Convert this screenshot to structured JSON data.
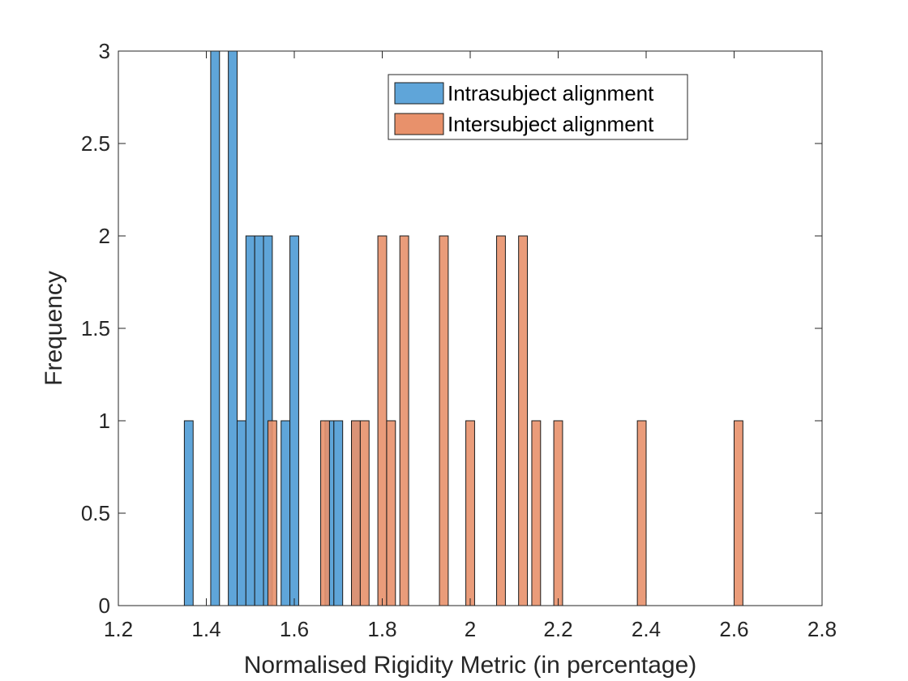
{
  "chart_data": {
    "type": "histogram",
    "xlabel": "Normalised Rigidity Metric (in percentage)",
    "ylabel": "Frequency",
    "xlim": [
      1.2,
      2.8
    ],
    "ylim": [
      0,
      3
    ],
    "xticks": [
      "1.2",
      "1.4",
      "1.6",
      "1.8",
      "2",
      "2.2",
      "2.4",
      "2.6",
      "2.8"
    ],
    "yticks": [
      "0",
      "0.5",
      "1",
      "1.5",
      "2",
      "2.5",
      "3"
    ],
    "bin_width": 0.02,
    "legend": {
      "position": "top-center"
    },
    "series": [
      {
        "name": "Intrasubject alignment",
        "color": "#5fa5d9",
        "edge": "#1a1a1a",
        "bins": [
          {
            "start": 1.35,
            "count": 1
          },
          {
            "start": 1.41,
            "count": 3
          },
          {
            "start": 1.45,
            "count": 3
          },
          {
            "start": 1.47,
            "count": 1
          },
          {
            "start": 1.49,
            "count": 2
          },
          {
            "start": 1.51,
            "count": 2
          },
          {
            "start": 1.53,
            "count": 2
          },
          {
            "start": 1.57,
            "count": 1
          },
          {
            "start": 1.59,
            "count": 2
          },
          {
            "start": 1.67,
            "count": 1
          },
          {
            "start": 1.69,
            "count": 1
          },
          {
            "start": 1.73,
            "count": 1
          }
        ]
      },
      {
        "name": "Intersubject alignment",
        "color": "#e8916b",
        "edge": "#1a1a1a",
        "bins": [
          {
            "start": 1.54,
            "count": 1
          },
          {
            "start": 1.66,
            "count": 1
          },
          {
            "start": 1.73,
            "count": 1
          },
          {
            "start": 1.75,
            "count": 1
          },
          {
            "start": 1.79,
            "count": 2
          },
          {
            "start": 1.81,
            "count": 1
          },
          {
            "start": 1.84,
            "count": 2
          },
          {
            "start": 1.93,
            "count": 2
          },
          {
            "start": 1.99,
            "count": 1
          },
          {
            "start": 2.06,
            "count": 2
          },
          {
            "start": 2.11,
            "count": 2
          },
          {
            "start": 2.14,
            "count": 1
          },
          {
            "start": 2.19,
            "count": 1
          },
          {
            "start": 2.38,
            "count": 1
          },
          {
            "start": 2.6,
            "count": 1
          }
        ]
      }
    ]
  }
}
